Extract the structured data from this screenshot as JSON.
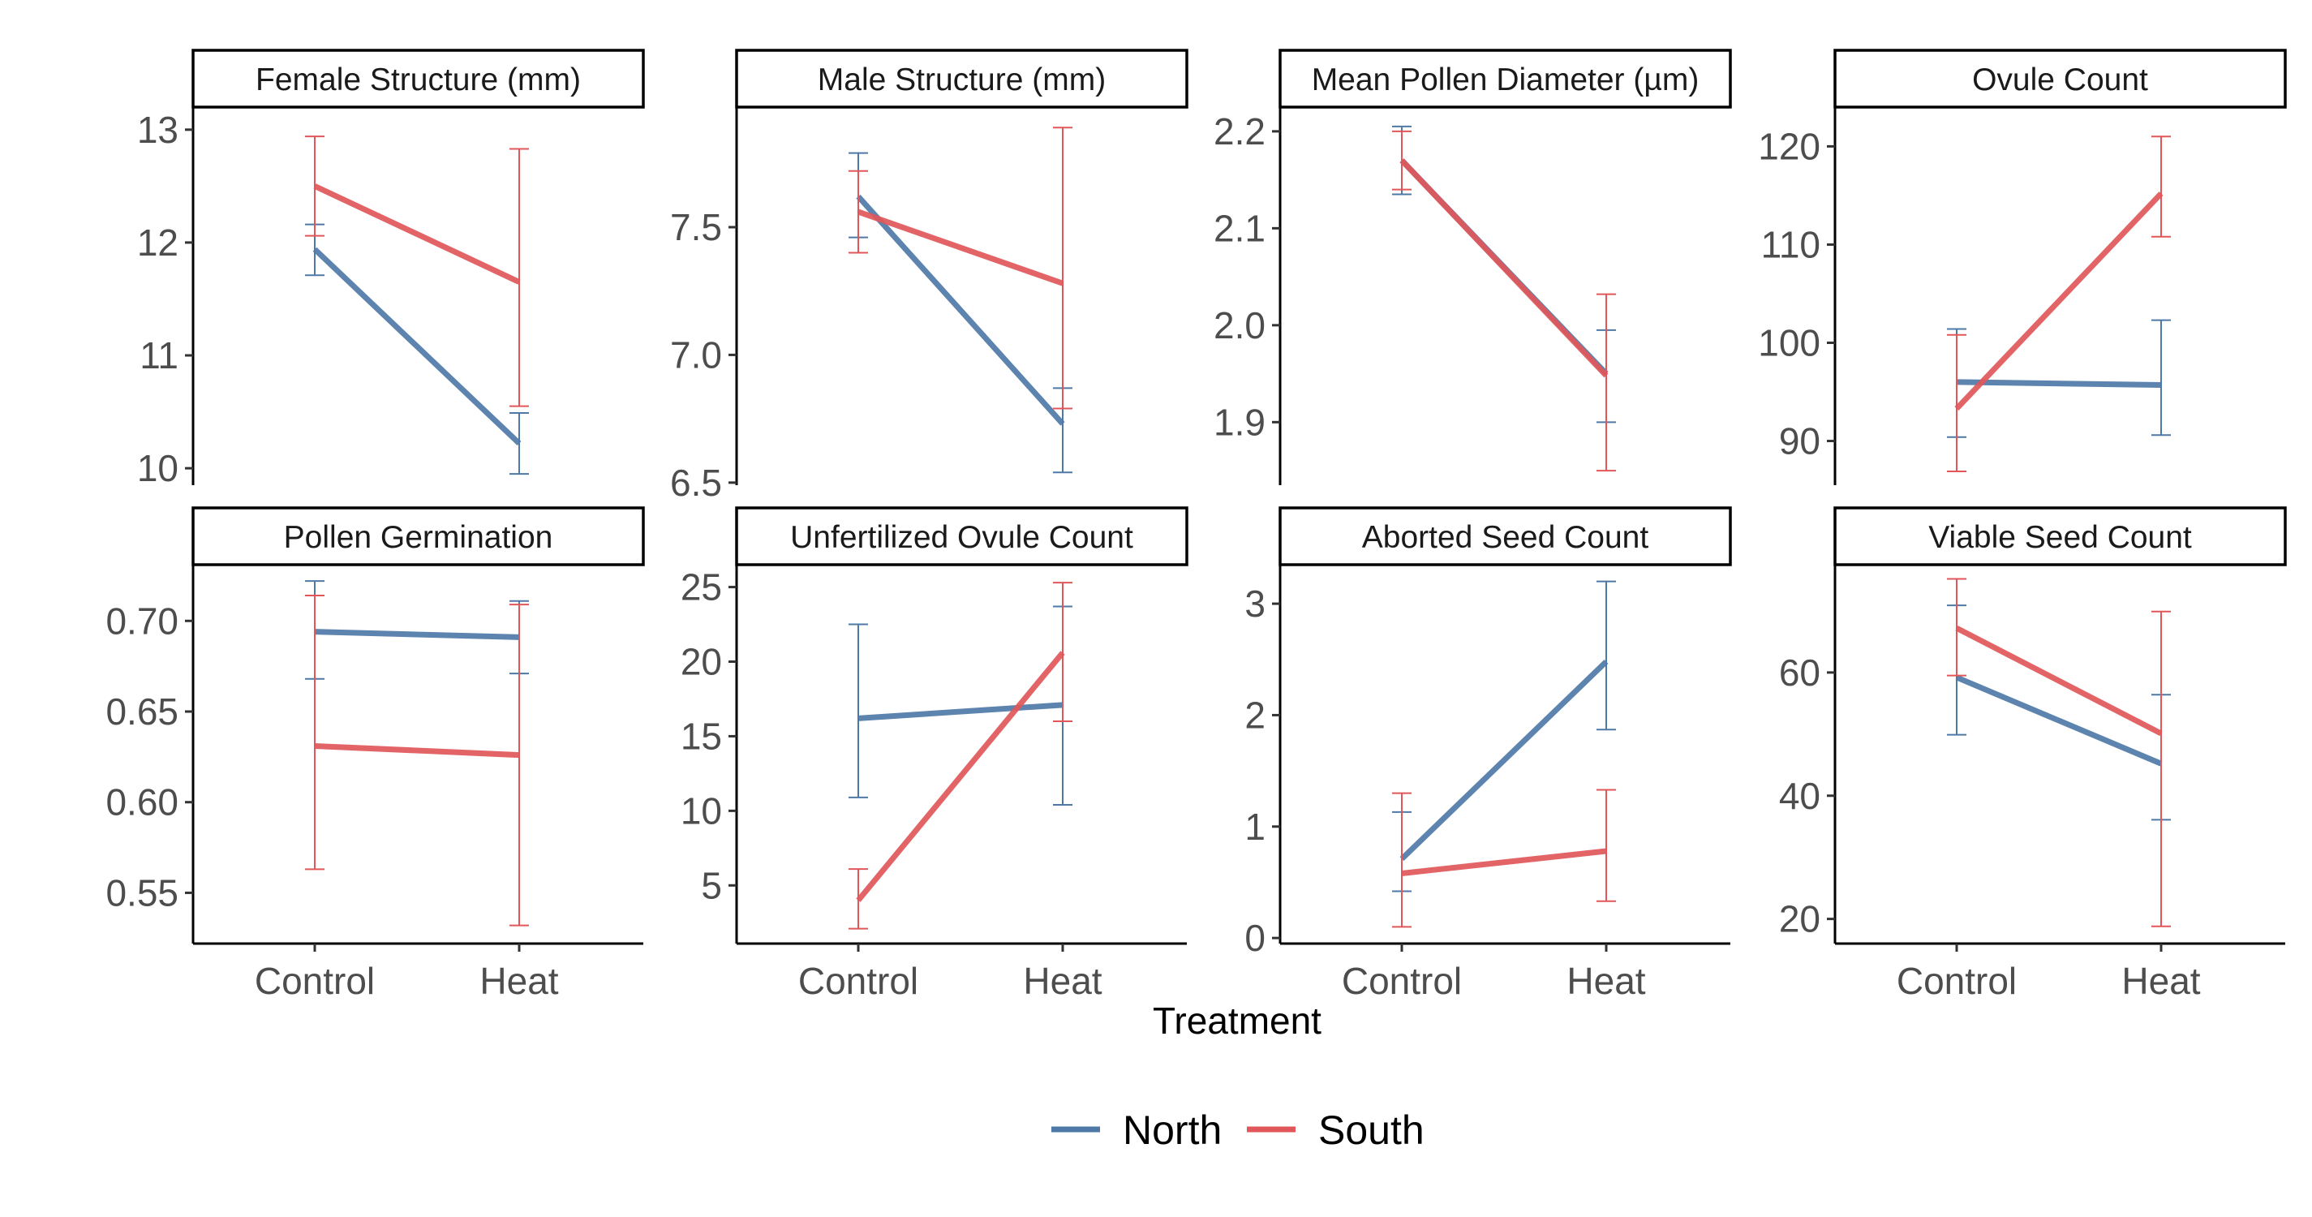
{
  "colors": {
    "north": "#4E79A7",
    "south": "#E15759"
  },
  "chart_data": {
    "type": "line",
    "xlabel": "Treatment",
    "categories": [
      "Control",
      "Heat"
    ],
    "series_names": [
      "North",
      "South"
    ],
    "legend_position": "bottom",
    "grid": false,
    "panels": [
      {
        "title": "Female Structure (mm)",
        "ylim": [
          9.85,
          13.2
        ],
        "yticks": [
          10,
          11,
          12,
          13
        ],
        "ytick_labels": [
          "10",
          "11",
          "12",
          "13"
        ],
        "series": [
          {
            "name": "North",
            "values": [
              11.94,
              10.22
            ],
            "lower": [
              11.71,
              9.95
            ],
            "upper": [
              12.16,
              10.49
            ]
          },
          {
            "name": "South",
            "values": [
              12.5,
              11.65
            ],
            "lower": [
              12.06,
              10.55
            ],
            "upper": [
              12.94,
              12.83
            ]
          }
        ]
      },
      {
        "title": "Male Structure (mm)",
        "ylim": [
          6.49,
          7.97
        ],
        "yticks": [
          6.5,
          7.0,
          7.5
        ],
        "ytick_labels": [
          "6.5",
          "7.0",
          "7.5"
        ],
        "series": [
          {
            "name": "North",
            "values": [
              7.62,
              6.73
            ],
            "lower": [
              7.46,
              6.54
            ],
            "upper": [
              7.79,
              6.87
            ]
          },
          {
            "name": "South",
            "values": [
              7.56,
              7.28
            ],
            "lower": [
              7.4,
              6.79
            ],
            "upper": [
              7.72,
              7.89
            ]
          }
        ]
      },
      {
        "title": "Mean Pollen Diameter (µm)",
        "ylim": [
          1.835,
          2.225
        ],
        "yticks": [
          1.9,
          2.0,
          2.1,
          2.2
        ],
        "ytick_labels": [
          "1.9",
          "2.0",
          "2.1",
          "2.2"
        ],
        "series": [
          {
            "name": "North",
            "values": [
              2.17,
              1.95
            ],
            "lower": [
              2.135,
              1.9
            ],
            "upper": [
              2.205,
              1.995
            ]
          },
          {
            "name": "South",
            "values": [
              2.17,
              1.948
            ],
            "lower": [
              2.14,
              1.85
            ],
            "upper": [
              2.2,
              2.032
            ]
          }
        ]
      },
      {
        "title": "Ovule Count",
        "ylim": [
          85.5,
          124
        ],
        "yticks": [
          90,
          100,
          110,
          120
        ],
        "ytick_labels": [
          "90",
          "100",
          "110",
          "120"
        ],
        "series": [
          {
            "name": "North",
            "values": [
              96.0,
              95.7
            ],
            "lower": [
              90.4,
              90.6
            ],
            "upper": [
              101.4,
              102.3
            ]
          },
          {
            "name": "South",
            "values": [
              93.3,
              115.2
            ],
            "lower": [
              86.9,
              110.8
            ],
            "upper": [
              100.8,
              121.0
            ]
          }
        ]
      },
      {
        "title": "Pollen Germination",
        "ylim": [
          0.522,
          0.731
        ],
        "yticks": [
          0.55,
          0.6,
          0.65,
          0.7
        ],
        "ytick_labels": [
          "0.55",
          "0.60",
          "0.65",
          "0.70"
        ],
        "series": [
          {
            "name": "North",
            "values": [
              0.694,
              0.691
            ],
            "lower": [
              0.668,
              0.671
            ],
            "upper": [
              0.722,
              0.711
            ]
          },
          {
            "name": "South",
            "values": [
              0.631,
              0.626
            ],
            "lower": [
              0.563,
              0.532
            ],
            "upper": [
              0.714,
              0.709
            ]
          }
        ]
      },
      {
        "title": "Unfertilized Ovule Count",
        "ylim": [
          1.1,
          26.5
        ],
        "yticks": [
          5,
          10,
          15,
          20,
          25
        ],
        "ytick_labels": [
          "5",
          "10",
          "15",
          "20",
          "25"
        ],
        "series": [
          {
            "name": "North",
            "values": [
              16.2,
              17.1
            ],
            "lower": [
              10.9,
              10.4
            ],
            "upper": [
              22.5,
              23.7
            ]
          },
          {
            "name": "South",
            "values": [
              4.0,
              20.6
            ],
            "lower": [
              2.1,
              16.0
            ],
            "upper": [
              6.1,
              25.3
            ]
          }
        ]
      },
      {
        "title": "Aborted Seed Count",
        "ylim": [
          -0.05,
          3.35
        ],
        "yticks": [
          0,
          1,
          2,
          3
        ],
        "ytick_labels": [
          "0",
          "1",
          "2",
          "3"
        ],
        "series": [
          {
            "name": "North",
            "values": [
              0.71,
              2.48
            ],
            "lower": [
              0.42,
              1.87
            ],
            "upper": [
              1.13,
              3.2
            ]
          },
          {
            "name": "South",
            "values": [
              0.58,
              0.78
            ],
            "lower": [
              0.1,
              0.33
            ],
            "upper": [
              1.3,
              1.33
            ]
          }
        ]
      },
      {
        "title": "Viable Seed Count",
        "ylim": [
          16,
          77.5
        ],
        "yticks": [
          20,
          40,
          60
        ],
        "ytick_labels": [
          "20",
          "40",
          "60"
        ],
        "series": [
          {
            "name": "North",
            "values": [
              59.2,
              45.2
            ],
            "lower": [
              49.9,
              36.1
            ],
            "upper": [
              70.9,
              56.4
            ]
          },
          {
            "name": "South",
            "values": [
              67.2,
              50.1
            ],
            "lower": [
              59.5,
              18.8
            ],
            "upper": [
              75.2,
              69.9
            ]
          }
        ]
      }
    ]
  }
}
